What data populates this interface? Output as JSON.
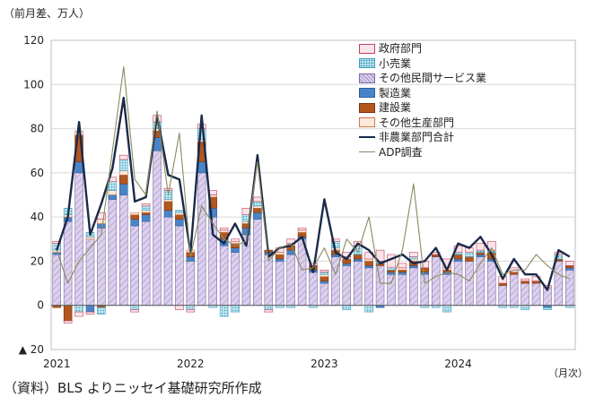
{
  "unit_label": "（前月差、万人）",
  "month_label": "（月次）",
  "source": "（資料）BLS よりニッセイ基礎研究所作成",
  "chart_data": {
    "type": "bar",
    "stacked": true,
    "ylim": [
      -20,
      120
    ],
    "yticks": [
      {
        "v": 120,
        "label": "120"
      },
      {
        "v": 100,
        "label": "100"
      },
      {
        "v": 80,
        "label": "80"
      },
      {
        "v": 60,
        "label": "60"
      },
      {
        "v": 40,
        "label": "40"
      },
      {
        "v": 20,
        "label": "20"
      },
      {
        "v": 0,
        "label": "0"
      },
      {
        "v": -20,
        "label": "▲ 20"
      }
    ],
    "xticks": [
      {
        "i": 0,
        "label": "2021"
      },
      {
        "i": 12,
        "label": "2022"
      },
      {
        "i": 24,
        "label": "2023"
      },
      {
        "i": 36,
        "label": "2024"
      }
    ],
    "grid": true,
    "legend_position": "top-right",
    "n_months": 47,
    "series": [
      {
        "name": "政府部門",
        "key": "gov",
        "color": "#fbe4e8",
        "stroke": "#c04060",
        "values": [
          1,
          -1,
          -2,
          -1,
          3,
          2,
          2,
          -1,
          1,
          3,
          1,
          -2,
          -1,
          2,
          2,
          1,
          1,
          3,
          2,
          -1,
          2,
          2,
          1,
          1,
          1,
          1,
          2,
          2,
          3,
          5,
          6,
          2,
          2,
          3,
          1,
          4,
          3,
          2,
          3,
          4,
          3,
          2,
          1,
          2,
          1,
          1,
          2
        ]
      },
      {
        "name": "小売業",
        "key": "ret",
        "color": "#aee0ec",
        "stroke": "#3f9fbf",
        "values": [
          3,
          3,
          -3,
          2,
          -3,
          4,
          5,
          -2,
          2,
          3,
          4,
          1,
          -2,
          5,
          -1,
          -5,
          -3,
          3,
          2,
          -2,
          -1,
          -1,
          0,
          -1,
          1,
          3,
          -2,
          4,
          -3,
          1,
          1,
          0,
          1,
          -1,
          -1,
          -3,
          1,
          2,
          1,
          1,
          -1,
          -1,
          -2,
          0,
          -1,
          2,
          -1
        ]
      },
      {
        "name": "その他民間サービス業",
        "key": "svc",
        "color": "#dcd0ec",
        "stroke": "#7b6aa8",
        "values": [
          23,
          38,
          60,
          30,
          35,
          48,
          50,
          36,
          38,
          70,
          40,
          36,
          20,
          60,
          40,
          27,
          24,
          32,
          39,
          23,
          20,
          23,
          30,
          15,
          10,
          22,
          18,
          20,
          17,
          18,
          14,
          14,
          17,
          14,
          22,
          14,
          20,
          20,
          22,
          20,
          9,
          14,
          10,
          10,
          8,
          20,
          16
        ]
      },
      {
        "name": "製造業",
        "key": "mfg",
        "color": "#4a84c8",
        "stroke": "#2d5e9e",
        "values": [
          1,
          2,
          5,
          -3,
          2,
          2,
          5,
          3,
          3,
          6,
          3,
          3,
          2,
          5,
          4,
          3,
          2,
          3,
          3,
          1,
          1,
          2,
          1,
          1,
          1,
          1,
          1,
          1,
          1,
          -1,
          1,
          1,
          1,
          1,
          0,
          1,
          1,
          0,
          1,
          1,
          0,
          0,
          0,
          0,
          -1,
          0,
          1
        ]
      },
      {
        "name": "建設業",
        "key": "con",
        "color": "#b2571e",
        "stroke": "#7a3510",
        "values": [
          -1,
          -7,
          12,
          0,
          -1,
          0,
          4,
          2,
          1,
          3,
          4,
          2,
          2,
          9,
          5,
          3,
          2,
          2,
          2,
          1,
          2,
          2,
          2,
          2,
          2,
          2,
          2,
          2,
          2,
          1,
          1,
          1,
          2,
          2,
          1,
          1,
          2,
          2,
          1,
          3,
          1,
          1,
          1,
          1,
          0,
          1,
          1
        ]
      },
      {
        "name": "その他生産部門",
        "key": "oth",
        "color": "#fde9dc",
        "stroke": "#c87a4a",
        "values": [
          1,
          1,
          2,
          1,
          2,
          2,
          2,
          1,
          1,
          1,
          1,
          1,
          1,
          1,
          1,
          1,
          1,
          1,
          1,
          0,
          1,
          1,
          1,
          0,
          1,
          1,
          1,
          0,
          1,
          0,
          0,
          1,
          1,
          0,
          0,
          1,
          0,
          0,
          0,
          0,
          0,
          0,
          0,
          0,
          0,
          0,
          0
        ]
      }
    ],
    "lines": [
      {
        "name": "非農業部門合計",
        "key": "nfp",
        "color": "#1a2a4a",
        "values": [
          25,
          40,
          83,
          32,
          46,
          62,
          94,
          47,
          49,
          86,
          59,
          57,
          24,
          86,
          32,
          28,
          37,
          27,
          68,
          22,
          26,
          27,
          31,
          15,
          48,
          24,
          21,
          28,
          25,
          19,
          21,
          23,
          19,
          20,
          26,
          16,
          28,
          26,
          31,
          23,
          12,
          21,
          14,
          14,
          7,
          25,
          22
        ]
      },
      {
        "name": "ADP調査",
        "key": "adp",
        "color": "#8a8a60",
        "values": [
          25,
          10,
          20,
          26,
          32,
          70,
          108,
          57,
          50,
          88,
          50,
          78,
          22,
          45,
          37,
          30,
          27,
          29,
          65,
          20,
          26,
          28,
          16,
          17,
          26,
          14,
          30,
          24,
          40,
          10,
          10,
          25,
          55,
          10,
          13,
          15,
          14,
          11,
          19,
          26,
          14,
          16,
          16,
          23,
          18,
          14,
          12
        ]
      }
    ]
  }
}
